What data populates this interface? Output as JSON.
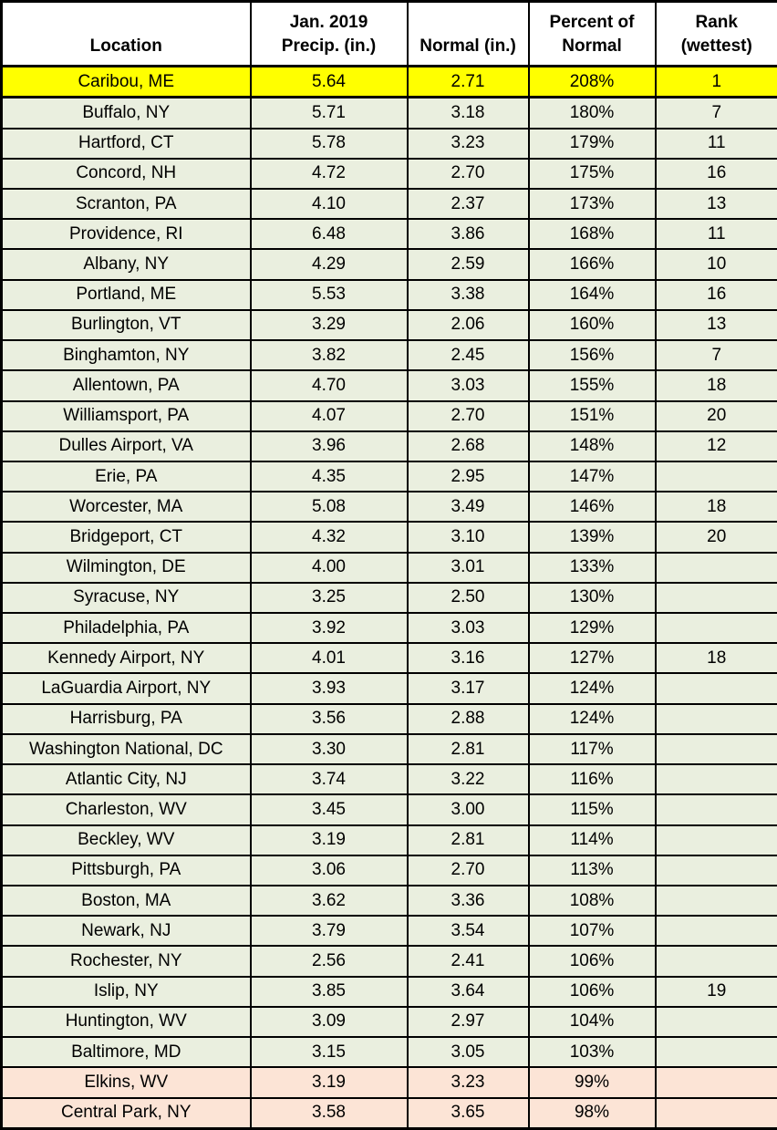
{
  "colors": {
    "highlight_yellow": "#FFFF00",
    "row_green": "#EAEFDF",
    "row_peach": "#FCE4D6",
    "header_bg": "#FFFFFF",
    "border": "#000000"
  },
  "chart_data": {
    "type": "table",
    "columns": [
      {
        "line1": "",
        "line2": "Location"
      },
      {
        "line1": "Jan. 2019",
        "line2": "Precip. (in.)"
      },
      {
        "line1": "",
        "line2": "Normal (in.)"
      },
      {
        "line1": "Percent of",
        "line2": "Normal"
      },
      {
        "line1": "Rank",
        "line2": "(wettest)"
      }
    ],
    "rows": [
      {
        "location": "Caribou, ME",
        "precip": "5.64",
        "normal": "2.71",
        "percent": "208%",
        "rank": "1",
        "bg": "yellow"
      },
      {
        "location": "Buffalo, NY",
        "precip": "5.71",
        "normal": "3.18",
        "percent": "180%",
        "rank": "7",
        "bg": "green"
      },
      {
        "location": "Hartford, CT",
        "precip": "5.78",
        "normal": "3.23",
        "percent": "179%",
        "rank": "11",
        "bg": "green"
      },
      {
        "location": "Concord, NH",
        "precip": "4.72",
        "normal": "2.70",
        "percent": "175%",
        "rank": "16",
        "bg": "green"
      },
      {
        "location": "Scranton, PA",
        "precip": "4.10",
        "normal": "2.37",
        "percent": "173%",
        "rank": "13",
        "bg": "green"
      },
      {
        "location": "Providence, RI",
        "precip": "6.48",
        "normal": "3.86",
        "percent": "168%",
        "rank": "11",
        "bg": "green"
      },
      {
        "location": "Albany, NY",
        "precip": "4.29",
        "normal": "2.59",
        "percent": "166%",
        "rank": "10",
        "bg": "green"
      },
      {
        "location": "Portland, ME",
        "precip": "5.53",
        "normal": "3.38",
        "percent": "164%",
        "rank": "16",
        "bg": "green"
      },
      {
        "location": "Burlington, VT",
        "precip": "3.29",
        "normal": "2.06",
        "percent": "160%",
        "rank": "13",
        "bg": "green"
      },
      {
        "location": "Binghamton, NY",
        "precip": "3.82",
        "normal": "2.45",
        "percent": "156%",
        "rank": "7",
        "bg": "green"
      },
      {
        "location": "Allentown, PA",
        "precip": "4.70",
        "normal": "3.03",
        "percent": "155%",
        "rank": "18",
        "bg": "green"
      },
      {
        "location": "Williamsport, PA",
        "precip": "4.07",
        "normal": "2.70",
        "percent": "151%",
        "rank": "20",
        "bg": "green"
      },
      {
        "location": "Dulles Airport, VA",
        "precip": "3.96",
        "normal": "2.68",
        "percent": "148%",
        "rank": "12",
        "bg": "green"
      },
      {
        "location": "Erie, PA",
        "precip": "4.35",
        "normal": "2.95",
        "percent": "147%",
        "rank": "",
        "bg": "green"
      },
      {
        "location": "Worcester, MA",
        "precip": "5.08",
        "normal": "3.49",
        "percent": "146%",
        "rank": "18",
        "bg": "green"
      },
      {
        "location": "Bridgeport, CT",
        "precip": "4.32",
        "normal": "3.10",
        "percent": "139%",
        "rank": "20",
        "bg": "green"
      },
      {
        "location": "Wilmington, DE",
        "precip": "4.00",
        "normal": "3.01",
        "percent": "133%",
        "rank": "",
        "bg": "green"
      },
      {
        "location": "Syracuse, NY",
        "precip": "3.25",
        "normal": "2.50",
        "percent": "130%",
        "rank": "",
        "bg": "green"
      },
      {
        "location": "Philadelphia, PA",
        "precip": "3.92",
        "normal": "3.03",
        "percent": "129%",
        "rank": "",
        "bg": "green"
      },
      {
        "location": "Kennedy Airport, NY",
        "precip": "4.01",
        "normal": "3.16",
        "percent": "127%",
        "rank": "18",
        "bg": "green"
      },
      {
        "location": "LaGuardia Airport, NY",
        "precip": "3.93",
        "normal": "3.17",
        "percent": "124%",
        "rank": "",
        "bg": "green"
      },
      {
        "location": "Harrisburg, PA",
        "precip": "3.56",
        "normal": "2.88",
        "percent": "124%",
        "rank": "",
        "bg": "green"
      },
      {
        "location": "Washington National, DC",
        "precip": "3.30",
        "normal": "2.81",
        "percent": "117%",
        "rank": "",
        "bg": "green"
      },
      {
        "location": "Atlantic City, NJ",
        "precip": "3.74",
        "normal": "3.22",
        "percent": "116%",
        "rank": "",
        "bg": "green"
      },
      {
        "location": "Charleston, WV",
        "precip": "3.45",
        "normal": "3.00",
        "percent": "115%",
        "rank": "",
        "bg": "green"
      },
      {
        "location": "Beckley, WV",
        "precip": "3.19",
        "normal": "2.81",
        "percent": "114%",
        "rank": "",
        "bg": "green"
      },
      {
        "location": "Pittsburgh, PA",
        "precip": "3.06",
        "normal": "2.70",
        "percent": "113%",
        "rank": "",
        "bg": "green"
      },
      {
        "location": "Boston, MA",
        "precip": "3.62",
        "normal": "3.36",
        "percent": "108%",
        "rank": "",
        "bg": "green"
      },
      {
        "location": "Newark, NJ",
        "precip": "3.79",
        "normal": "3.54",
        "percent": "107%",
        "rank": "",
        "bg": "green"
      },
      {
        "location": "Rochester, NY",
        "precip": "2.56",
        "normal": "2.41",
        "percent": "106%",
        "rank": "",
        "bg": "green"
      },
      {
        "location": "Islip, NY",
        "precip": "3.85",
        "normal": "3.64",
        "percent": "106%",
        "rank": "19",
        "bg": "green"
      },
      {
        "location": "Huntington, WV",
        "precip": "3.09",
        "normal": "2.97",
        "percent": "104%",
        "rank": "",
        "bg": "green"
      },
      {
        "location": "Baltimore, MD",
        "precip": "3.15",
        "normal": "3.05",
        "percent": "103%",
        "rank": "",
        "bg": "green"
      },
      {
        "location": "Elkins, WV",
        "precip": "3.19",
        "normal": "3.23",
        "percent": "99%",
        "rank": "",
        "bg": "peach"
      },
      {
        "location": "Central Park, NY",
        "precip": "3.58",
        "normal": "3.65",
        "percent": "98%",
        "rank": "",
        "bg": "peach"
      }
    ]
  }
}
